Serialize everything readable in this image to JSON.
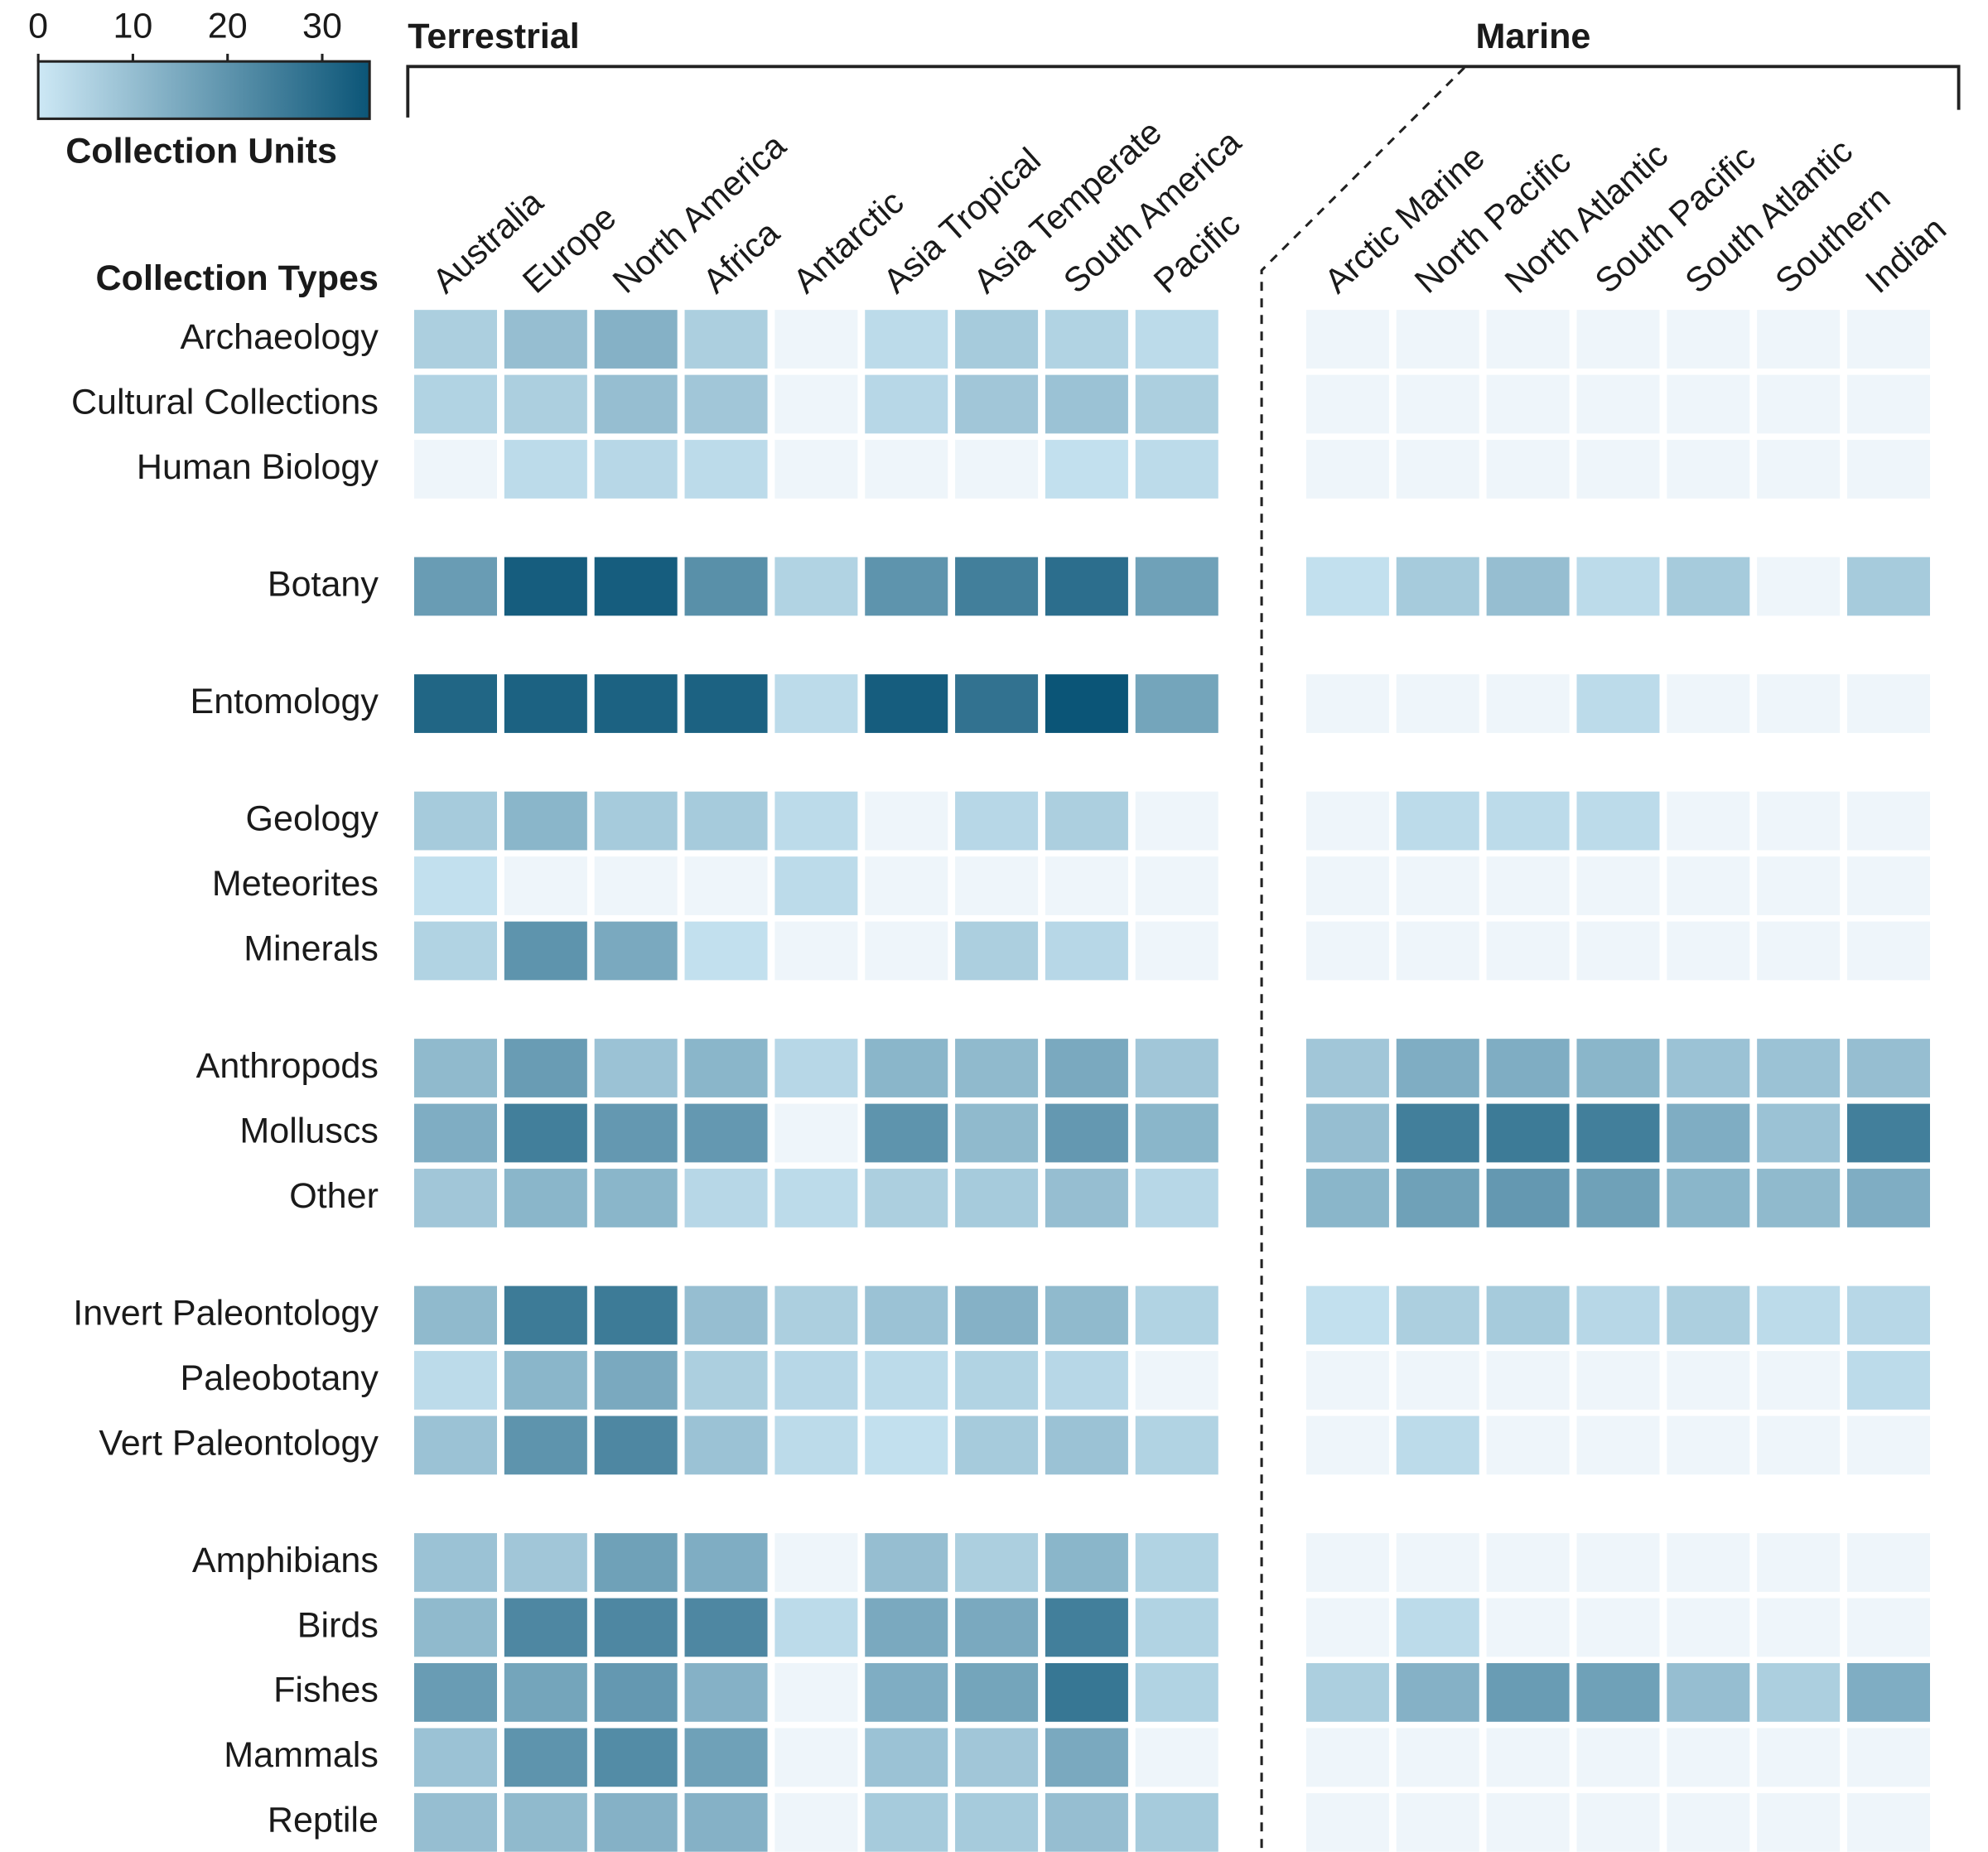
{
  "chart_data": {
    "type": "heatmap",
    "y_title": "Collection Types",
    "colorbar_title": "Collection Units",
    "clim": [
      0,
      35
    ],
    "cticks": [
      0,
      10,
      20,
      30
    ],
    "colors": [
      "#cde8f5",
      "#0b5577"
    ],
    "null_color": "#eef5fa",
    "column_groups": [
      {
        "name": "Terrestrial",
        "columns": [
          "Australia",
          "Europe",
          "North America",
          "Africa",
          "Antarctic",
          "Asia Tropical",
          "Asia Temperate",
          "South America",
          "Pacific"
        ]
      },
      {
        "name": "Marine",
        "columns": [
          "Arctic Marine",
          "North Pacific",
          "North Atlantic",
          "South Pacific",
          "South Atlantic",
          "Southern",
          "Indian"
        ]
      }
    ],
    "row_groups": [
      [
        "Archaeology",
        "Cultural Collections",
        "Human Biology"
      ],
      [
        "Botany"
      ],
      [
        "Entomology"
      ],
      [
        "Geology",
        "Meteorites",
        "Minerals"
      ],
      [
        "Anthropods",
        "Molluscs",
        "Other"
      ],
      [
        "Invert Paleontology",
        "Paleobotany",
        "Vert Paleontology"
      ],
      [
        "Amphibians",
        "Birds",
        "Fishes",
        "Mammals",
        "Reptile"
      ]
    ],
    "values": [
      [
        [
          6,
          10,
          13,
          6,
          null,
          3,
          7,
          5,
          3,
          null,
          null,
          null,
          null,
          null,
          null,
          null
        ],
        [
          5,
          6,
          10,
          8,
          null,
          4,
          8,
          9,
          6,
          null,
          null,
          null,
          null,
          null,
          null,
          null
        ],
        [
          null,
          3,
          4,
          3,
          null,
          null,
          null,
          2,
          3,
          null,
          null,
          null,
          null,
          null,
          null,
          null
        ]
      ],
      [
        [
          18,
          33,
          33,
          21,
          5,
          20,
          25,
          29,
          17,
          2,
          7,
          10,
          3,
          7,
          null,
          7
        ]
      ],
      [
        [
          31,
          32,
          32,
          32,
          3,
          33,
          28,
          35,
          16,
          null,
          null,
          null,
          3,
          null,
          null,
          null
        ]
      ],
      [
        [
          7,
          12,
          7,
          7,
          3,
          null,
          4,
          6,
          null,
          null,
          3,
          3,
          3,
          null,
          null,
          null
        ],
        [
          2,
          null,
          null,
          null,
          3,
          null,
          null,
          null,
          null,
          null,
          null,
          null,
          null,
          null,
          null,
          null
        ],
        [
          5,
          20,
          15,
          2,
          null,
          null,
          6,
          4,
          null,
          null,
          null,
          null,
          null,
          null,
          null,
          null
        ]
      ],
      [
        [
          11,
          18,
          9,
          12,
          4,
          12,
          11,
          15,
          8,
          8,
          14,
          14,
          12,
          9,
          9,
          10
        ],
        [
          14,
          25,
          19,
          19,
          null,
          20,
          11,
          19,
          12,
          10,
          25,
          26,
          25,
          14,
          9,
          25
        ],
        [
          8,
          12,
          12,
          4,
          3,
          6,
          7,
          10,
          4,
          12,
          17,
          19,
          17,
          12,
          11,
          14
        ]
      ],
      [
        [
          11,
          26,
          26,
          10,
          6,
          9,
          13,
          11,
          5,
          2,
          6,
          7,
          4,
          6,
          3,
          4
        ],
        [
          3,
          12,
          15,
          6,
          4,
          3,
          5,
          4,
          null,
          null,
          null,
          null,
          null,
          null,
          null,
          3
        ],
        [
          9,
          20,
          23,
          9,
          3,
          2,
          7,
          9,
          5,
          null,
          3,
          null,
          null,
          null,
          null,
          null
        ]
      ],
      [
        [
          9,
          8,
          17,
          14,
          null,
          10,
          6,
          12,
          5,
          null,
          null,
          null,
          null,
          null,
          null,
          null
        ],
        [
          11,
          23,
          23,
          23,
          3,
          15,
          15,
          25,
          5,
          null,
          3,
          null,
          null,
          null,
          null,
          null
        ],
        [
          18,
          16,
          19,
          13,
          null,
          14,
          16,
          27,
          5,
          6,
          13,
          18,
          17,
          10,
          6,
          14
        ],
        [
          9,
          20,
          22,
          17,
          null,
          9,
          8,
          15,
          null,
          null,
          null,
          null,
          null,
          null,
          null,
          null
        ],
        [
          10,
          11,
          13,
          13,
          null,
          7,
          7,
          10,
          7,
          null,
          null,
          null,
          null,
          null,
          null,
          null
        ]
      ]
    ]
  }
}
